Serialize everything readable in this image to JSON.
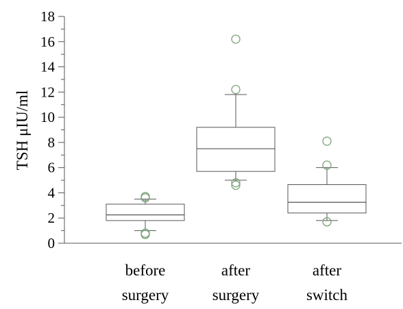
{
  "chart_data": {
    "type": "box",
    "title": "",
    "xlabel": "",
    "ylabel": "TSH μIU/ml",
    "ylim": [
      0,
      18
    ],
    "ytick_step": 2,
    "grid": false,
    "colors": {
      "box": "#555555",
      "outlier": "#7aa27a",
      "axis": "#555555"
    },
    "categories": [
      {
        "line1": "before",
        "line2": "surgery"
      },
      {
        "line1": "after",
        "line2": "surgery"
      },
      {
        "line1": "after",
        "line2": "switch"
      }
    ],
    "boxes": [
      {
        "whisker_low": 1.0,
        "q1": 1.8,
        "median": 2.25,
        "q3": 3.1,
        "whisker_high": 3.5,
        "outliers": [
          0.7,
          0.8,
          3.6,
          3.7
        ]
      },
      {
        "whisker_low": 5.0,
        "q1": 5.7,
        "median": 7.5,
        "q3": 9.2,
        "whisker_high": 11.8,
        "outliers": [
          4.6,
          4.8,
          12.2,
          16.2
        ]
      },
      {
        "whisker_low": 1.8,
        "q1": 2.4,
        "median": 3.25,
        "q3": 4.65,
        "whisker_high": 6.0,
        "outliers": [
          1.7,
          6.2,
          8.1
        ]
      }
    ]
  }
}
